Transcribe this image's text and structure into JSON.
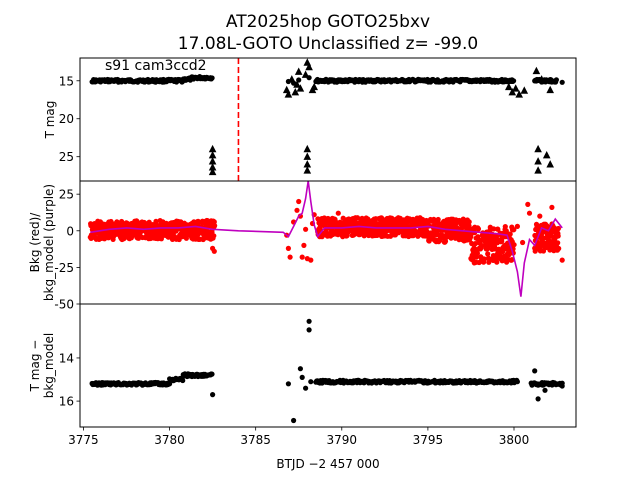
{
  "figure": {
    "title_line1": "AT2025hop  GOTO25bxv",
    "title_line2": "17.08L-GOTO Unclassified z= -99.0",
    "annotation": "s91 cam3ccd2",
    "xlabel": "BTJD −2 457 000"
  },
  "chart_data": [
    {
      "type": "scatter",
      "panel": "top",
      "ylabel": "T mag",
      "y_inverted": true,
      "xlim": [
        3774.8,
        3803.6
      ],
      "ylim": [
        28.2,
        12.0
      ],
      "xticks": [
        3775,
        3780,
        3785,
        3790,
        3795,
        3800
      ],
      "yticks": [
        15,
        20,
        25
      ],
      "vline": {
        "x": 3784.0,
        "color": "#ff0000",
        "style": "dashed"
      },
      "series": [
        {
          "marker": "circle",
          "color": "#000000",
          "segments": [
            {
              "x0": 3775.5,
              "x1": 3780.8,
              "y": 15.0
            },
            {
              "x0": 3780.8,
              "x1": 3781.3,
              "y": 14.8
            },
            {
              "x0": 3781.3,
              "x1": 3782.5,
              "y": 14.6
            },
            {
              "x0": 3788.5,
              "x1": 3800.0,
              "y": 15.0
            },
            {
              "x0": 3801.2,
              "x1": 3802.5,
              "y": 15.0
            }
          ],
          "points": [
            {
              "x": 3786.9,
              "y": 15.1
            },
            {
              "x": 3787.2,
              "y": 15.3
            },
            {
              "x": 3787.5,
              "y": 14.9
            },
            {
              "x": 3788.1,
              "y": 14.6
            },
            {
              "x": 3802.8,
              "y": 15.2
            }
          ]
        },
        {
          "marker": "triangle",
          "color": "#000000",
          "points": [
            {
              "x": 3782.5,
              "y": 24.0
            },
            {
              "x": 3782.5,
              "y": 24.8
            },
            {
              "x": 3782.5,
              "y": 25.6
            },
            {
              "x": 3782.5,
              "y": 26.4
            },
            {
              "x": 3782.5,
              "y": 27.0
            },
            {
              "x": 3786.8,
              "y": 16.2
            },
            {
              "x": 3786.9,
              "y": 16.8
            },
            {
              "x": 3787.1,
              "y": 14.8
            },
            {
              "x": 3787.3,
              "y": 16.5
            },
            {
              "x": 3787.4,
              "y": 15.5
            },
            {
              "x": 3787.5,
              "y": 13.8
            },
            {
              "x": 3787.6,
              "y": 16.0
            },
            {
              "x": 3787.9,
              "y": 14.2
            },
            {
              "x": 3788.0,
              "y": 12.6
            },
            {
              "x": 3788.1,
              "y": 13.2
            },
            {
              "x": 3788.3,
              "y": 16.2
            },
            {
              "x": 3788.4,
              "y": 15.8
            },
            {
              "x": 3788.0,
              "y": 24.0
            },
            {
              "x": 3788.0,
              "y": 25.0
            },
            {
              "x": 3788.0,
              "y": 26.0
            },
            {
              "x": 3788.0,
              "y": 26.8
            },
            {
              "x": 3799.7,
              "y": 15.8
            },
            {
              "x": 3799.9,
              "y": 16.5
            },
            {
              "x": 3800.1,
              "y": 16.0
            },
            {
              "x": 3800.3,
              "y": 16.8
            },
            {
              "x": 3800.6,
              "y": 16.3
            },
            {
              "x": 3801.3,
              "y": 13.7
            },
            {
              "x": 3801.6,
              "y": 14.8
            },
            {
              "x": 3802.1,
              "y": 16.2
            },
            {
              "x": 3801.4,
              "y": 24.0
            },
            {
              "x": 3801.4,
              "y": 25.6
            },
            {
              "x": 3801.4,
              "y": 26.8
            },
            {
              "x": 3801.9,
              "y": 24.8
            },
            {
              "x": 3802.1,
              "y": 26.0
            }
          ]
        }
      ]
    },
    {
      "type": "scatter",
      "panel": "middle",
      "ylabel": "Bkg (red)/\nbkg_model (purple)",
      "xlim": [
        3774.8,
        3803.6
      ],
      "ylim": [
        -50,
        34
      ],
      "yticks": [
        -50,
        -25,
        0,
        25
      ],
      "series": [
        {
          "name_hidden": "bkg",
          "marker": "circle",
          "color": "#ff0000",
          "bands": [
            {
              "x0": 3775.4,
              "x1": 3782.6,
              "ylow": -6,
              "yhigh": 7
            },
            {
              "x0": 3788.6,
              "x1": 3795.0,
              "ylow": -4,
              "yhigh": 9
            },
            {
              "x0": 3795.0,
              "x1": 3797.5,
              "ylow": -8,
              "yhigh": 8
            },
            {
              "x0": 3797.5,
              "x1": 3800.0,
              "ylow": -22,
              "yhigh": 3
            },
            {
              "x0": 3801.2,
              "x1": 3802.6,
              "ylow": -14,
              "yhigh": 5
            }
          ],
          "points": [
            {
              "x": 3782.5,
              "y": -12
            },
            {
              "x": 3782.6,
              "y": -14
            },
            {
              "x": 3786.8,
              "y": -3
            },
            {
              "x": 3786.9,
              "y": -12
            },
            {
              "x": 3787.0,
              "y": -18
            },
            {
              "x": 3787.2,
              "y": 6
            },
            {
              "x": 3787.4,
              "y": 14
            },
            {
              "x": 3787.5,
              "y": 20
            },
            {
              "x": 3787.6,
              "y": 10
            },
            {
              "x": 3787.7,
              "y": -18
            },
            {
              "x": 3787.8,
              "y": -10
            },
            {
              "x": 3787.9,
              "y": 1
            },
            {
              "x": 3788.0,
              "y": -19
            },
            {
              "x": 3788.2,
              "y": -20
            },
            {
              "x": 3788.3,
              "y": 5
            },
            {
              "x": 3788.4,
              "y": 11
            },
            {
              "x": 3789.8,
              "y": 12
            },
            {
              "x": 3800.2,
              "y": 3
            },
            {
              "x": 3800.5,
              "y": -8
            },
            {
              "x": 3800.8,
              "y": 18
            },
            {
              "x": 3800.9,
              "y": 12
            },
            {
              "x": 3801.5,
              "y": 10
            },
            {
              "x": 3801.8,
              "y": 4
            },
            {
              "x": 3802.2,
              "y": 16
            },
            {
              "x": 3802.4,
              "y": -8
            },
            {
              "x": 3802.8,
              "y": -20
            }
          ]
        },
        {
          "name_hidden": "bkg_model",
          "marker": "line",
          "color": "#bf00bf",
          "x": [
            3775.4,
            3776.5,
            3777.5,
            3778.5,
            3779.5,
            3780.5,
            3781.5,
            3782.5,
            3784.0,
            3786.6,
            3786.9,
            3787.2,
            3787.5,
            3787.7,
            3787.9,
            3788.05,
            3788.2,
            3788.4,
            3788.6,
            3789.0,
            3790.0,
            3791.0,
            3792.0,
            3793.0,
            3794.0,
            3795.0,
            3796.0,
            3797.0,
            3798.0,
            3799.0,
            3799.6,
            3799.9,
            3800.2,
            3800.4,
            3800.6,
            3800.9,
            3801.2,
            3801.6,
            3802.0,
            3802.4,
            3802.8
          ],
          "y": [
            -1,
            1,
            2,
            1,
            2,
            2,
            3,
            1,
            0,
            -1,
            -4,
            3,
            10,
            12,
            22,
            34,
            20,
            4,
            -4,
            2,
            2,
            3,
            2,
            2,
            2,
            3,
            1,
            0,
            -1,
            -2,
            -3,
            -14,
            -28,
            -45,
            -22,
            -6,
            -10,
            2,
            0,
            8,
            2
          ]
        }
      ]
    },
    {
      "type": "scatter",
      "panel": "bottom",
      "ylabel": "T mag −\nbkg_model",
      "y_inverted": true,
      "xlim": [
        3774.8,
        3803.6
      ],
      "ylim": [
        17.2,
        11.5
      ],
      "yticks": [
        14,
        16
      ],
      "series": [
        {
          "marker": "circle",
          "color": "#000000",
          "segments": [
            {
              "x0": 3775.5,
              "x1": 3780.0,
              "y": 15.2
            },
            {
              "x0": 3780.0,
              "x1": 3780.8,
              "y": 15.0
            },
            {
              "x0": 3780.8,
              "x1": 3782.5,
              "y": 14.8
            },
            {
              "x0": 3788.5,
              "x1": 3800.2,
              "y": 15.1
            },
            {
              "x0": 3801.0,
              "x1": 3802.8,
              "y": 15.2
            }
          ],
          "points": [
            {
              "x": 3782.5,
              "y": 15.7
            },
            {
              "x": 3786.9,
              "y": 15.2
            },
            {
              "x": 3787.2,
              "y": 16.9
            },
            {
              "x": 3787.6,
              "y": 14.5
            },
            {
              "x": 3787.7,
              "y": 14.9
            },
            {
              "x": 3787.9,
              "y": 15.4
            },
            {
              "x": 3788.1,
              "y": 12.3
            },
            {
              "x": 3788.1,
              "y": 12.7
            },
            {
              "x": 3788.2,
              "y": 15.1
            },
            {
              "x": 3801.2,
              "y": 14.6
            },
            {
              "x": 3801.4,
              "y": 15.9
            },
            {
              "x": 3801.8,
              "y": 15.5
            },
            {
              "x": 3802.8,
              "y": 15.3
            }
          ]
        }
      ]
    }
  ]
}
